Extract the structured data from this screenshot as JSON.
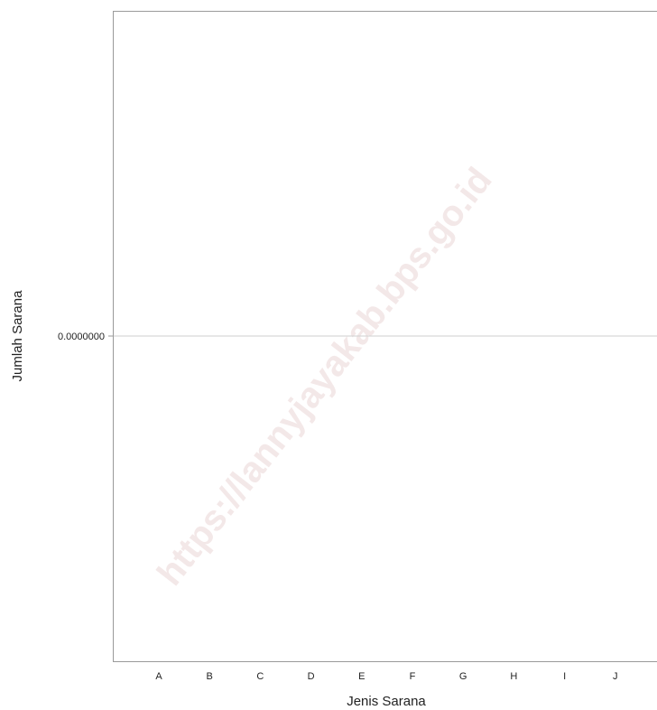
{
  "chart_data": {
    "type": "bar",
    "title": "",
    "xlabel": "Jenis Sarana",
    "ylabel": "Jumlah Sarana",
    "categories": [
      "A",
      "B",
      "C",
      "D",
      "E",
      "F",
      "G",
      "H",
      "I",
      "J"
    ],
    "values": [
      0,
      0,
      0,
      0,
      0,
      0,
      0,
      0,
      0,
      0
    ],
    "y_ticks": [
      "0.0000000"
    ],
    "grid": true,
    "legend": "none"
  },
  "watermark": "https://lannyjayakab.bps.go.id",
  "colors": {
    "axis": "#9a9a9a",
    "grid": "#cfcfcf",
    "bar": "#6fa8dc",
    "watermark": "#f2e4e4"
  }
}
